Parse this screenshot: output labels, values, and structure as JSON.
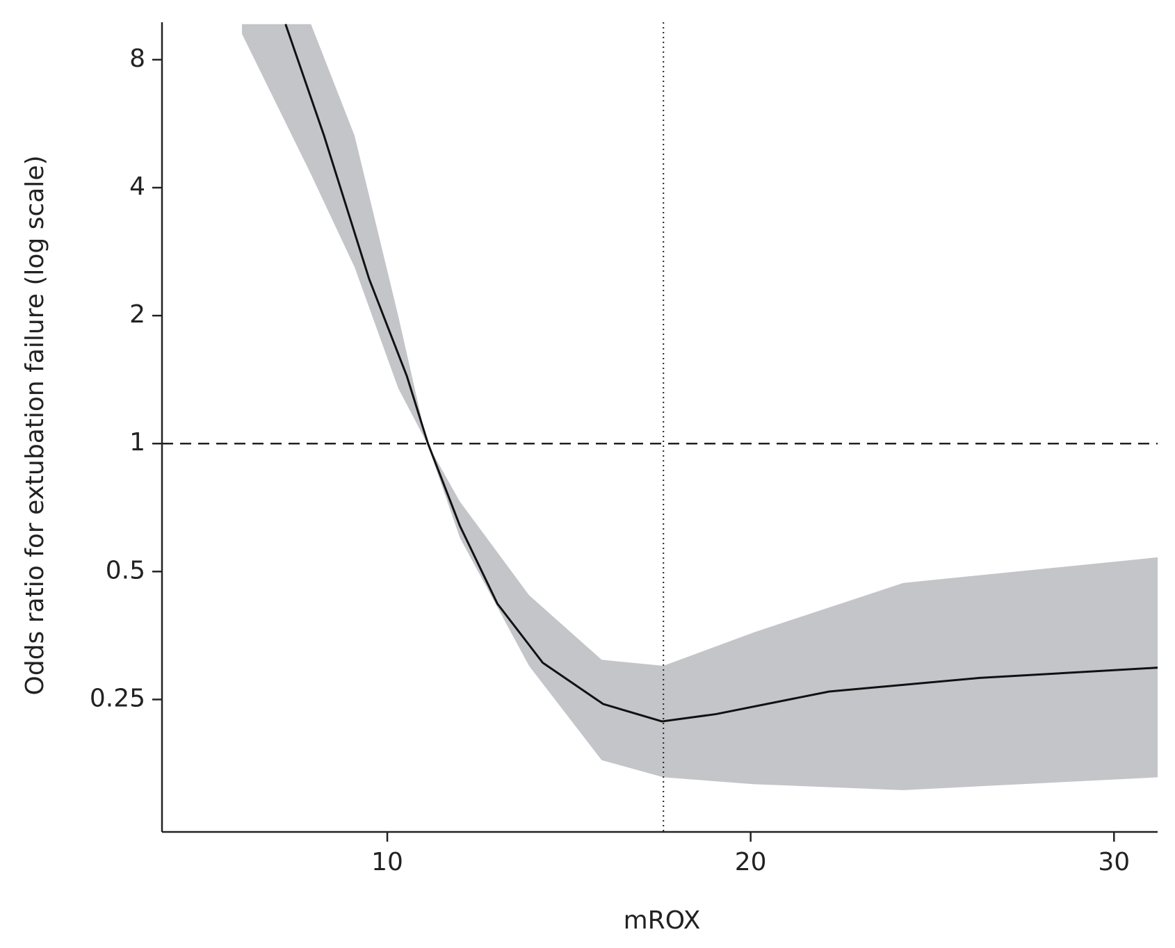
{
  "chart_data": {
    "type": "line",
    "xlabel": "mROX",
    "ylabel": "Odds ratio for extubation failure (log scale)",
    "x": [
      7.2,
      8.26,
      9.5,
      10.54,
      11.12,
      12.0,
      13.03,
      14.28,
      15.94,
      17.56,
      19.05,
      22.16,
      26.3,
      31.2
    ],
    "values": [
      9.7,
      5.3,
      2.44,
      1.44,
      1.0,
      0.64,
      0.42,
      0.305,
      0.244,
      0.222,
      0.231,
      0.261,
      0.281,
      0.297
    ],
    "color": "#111111",
    "band": {
      "x": [
        6.0,
        7.9,
        9.1,
        10.3,
        11.1,
        12.0,
        13.9,
        15.9,
        17.6,
        20.1,
        24.2,
        31.2
      ],
      "lower": [
        9.2,
        4.3,
        2.6,
        1.35,
        1.0,
        0.6,
        0.3,
        0.18,
        0.164,
        0.158,
        0.153,
        0.164
      ],
      "upper": [
        9.7,
        9.7,
        5.3,
        2.0,
        1.0,
        0.73,
        0.44,
        0.31,
        0.3,
        0.36,
        0.47,
        0.54
      ],
      "color": "#c4c5c9"
    },
    "reference_lines": {
      "y": 1,
      "x": 17.6
    },
    "xlim": [
      3.8,
      31.2
    ],
    "xticks": [
      10,
      20,
      30
    ],
    "ylim": [
      0.122,
      9.8
    ],
    "yticks": [
      0.25,
      0.5,
      1,
      2,
      4,
      8
    ],
    "ylog": true
  }
}
